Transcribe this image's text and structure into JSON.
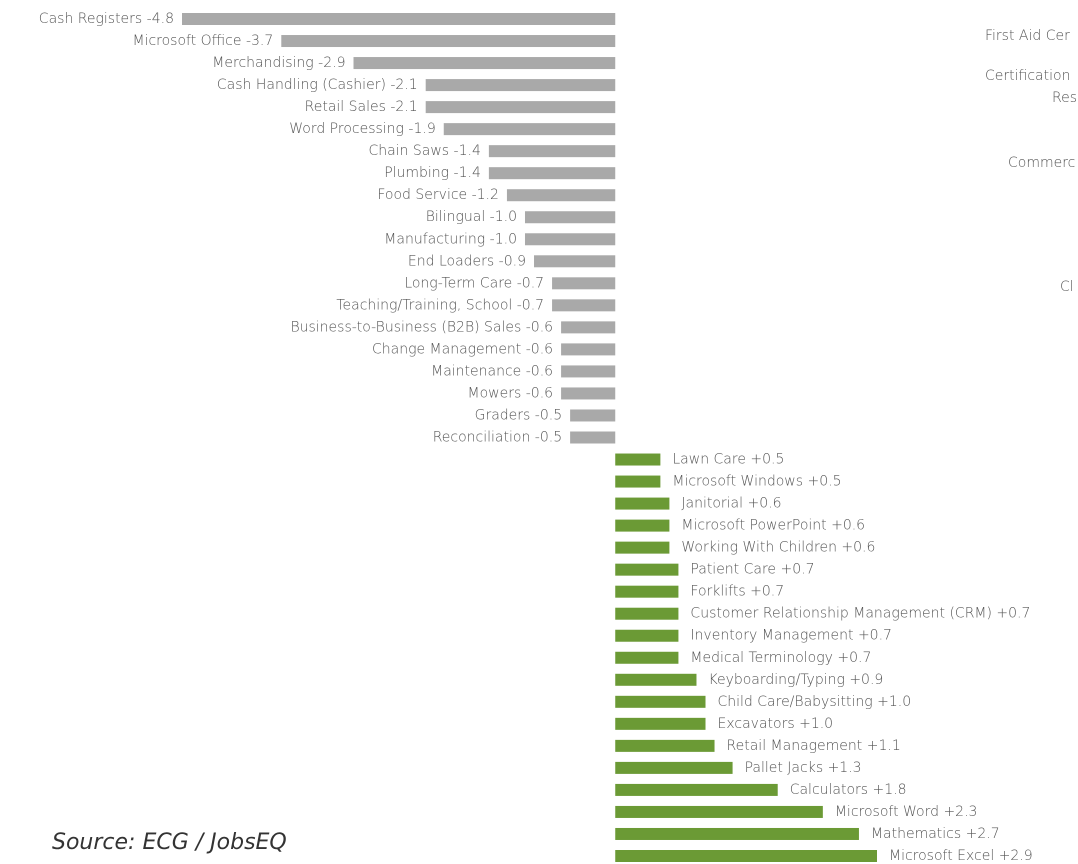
{
  "chart_data": {
    "type": "diverging_bar",
    "categories": [
      "Cash Registers",
      "Microsoft Office",
      "Merchandising",
      "Cash Handling (Cashier)",
      "Retail Sales",
      "Word Processing",
      "Chain Saws",
      "Plumbing",
      "Food Service",
      "Bilingual",
      "Manufacturing",
      "End Loaders",
      "Long-Term Care",
      "Teaching/Training, School",
      "Business-to-Business (B2B) Sales",
      "Change Management",
      "Maintenance",
      "Mowers",
      "Graders",
      "Reconciliation",
      "Lawn Care",
      "Microsoft Windows",
      "Janitorial",
      "Microsoft PowerPoint",
      "Working With Children",
      "Patient Care",
      "Forklifts",
      "Customer Relationship Management (CRM)",
      "Inventory Management",
      "Medical Terminology",
      "Keyboarding/Typing",
      "Child Care/Babysitting",
      "Excavators",
      "Retail Management",
      "Pallet Jacks",
      "Calculators",
      "Microsoft Word",
      "Mathematics",
      "Microsoft Excel"
    ],
    "values": [
      -4.8,
      -3.7,
      -2.9,
      -2.1,
      -2.1,
      -1.9,
      -1.4,
      -1.4,
      -1.2,
      -1.0,
      -1.0,
      -0.9,
      -0.7,
      -0.7,
      -0.6,
      -0.6,
      -0.6,
      -0.6,
      -0.5,
      -0.5,
      0.5,
      0.5,
      0.6,
      0.6,
      0.6,
      0.7,
      0.7,
      0.7,
      0.7,
      0.7,
      0.9,
      1.0,
      1.0,
      1.1,
      1.3,
      1.8,
      2.3,
      2.7,
      2.9
    ],
    "value_labels": [
      "-4.8",
      "-3.7",
      "-2.9",
      "-2.1",
      "-2.1",
      "-1.9",
      "-1.4",
      "-1.4",
      "-1.2",
      "-1.0",
      "-1.0",
      "-0.9",
      "-0.7",
      "-0.7",
      "-0.6",
      "-0.6",
      "-0.6",
      "-0.6",
      "-0.5",
      "-0.5",
      "+0.5",
      "+0.5",
      "+0.6",
      "+0.6",
      "+0.6",
      "+0.7",
      "+0.7",
      "+0.7",
      "+0.7",
      "+0.7",
      "+0.9",
      "+1.0",
      "+1.0",
      "+1.1",
      "+1.3",
      "+1.8",
      "+2.3",
      "+2.7",
      "+2.9"
    ],
    "negative_color": "#a9a9a9",
    "positive_color": "#6b9a35",
    "source": "Source: ECG / JobsEQ",
    "side_labels": [
      "First Aid Cer",
      "Certification",
      "Res",
      "Commerc",
      "Cl"
    ]
  }
}
